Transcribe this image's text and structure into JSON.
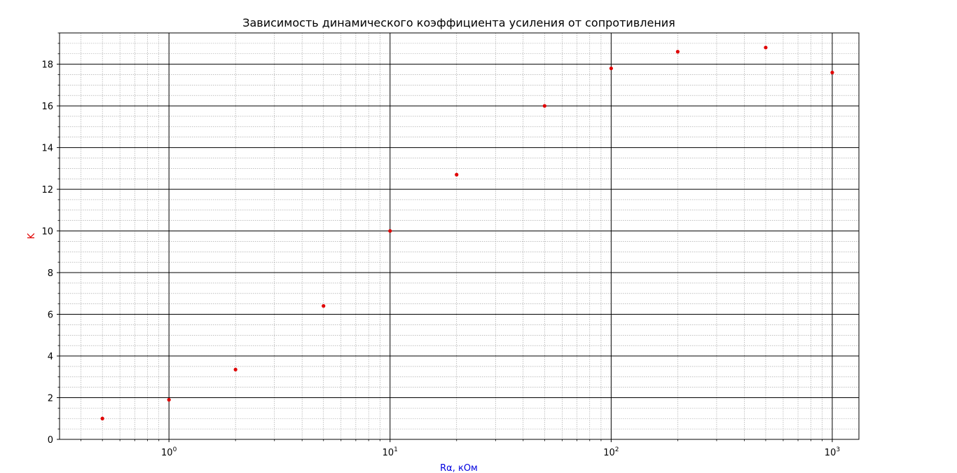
{
  "chart_data": {
    "type": "scatter",
    "title": "Зависимость динамического коэффициента усиления от сопротивления",
    "xlabel": "Rα, кОм",
    "ylabel": "K",
    "xscale": "log",
    "xlim": [
      0.32,
      1320
    ],
    "ylim": [
      0,
      19.5
    ],
    "x_ticks": [
      {
        "value": 1,
        "base": "10",
        "exp": "0"
      },
      {
        "value": 10,
        "base": "10",
        "exp": "1"
      },
      {
        "value": 100,
        "base": "10",
        "exp": "2"
      },
      {
        "value": 1000,
        "base": "10",
        "exp": "3"
      }
    ],
    "y_ticks": [
      0,
      2,
      4,
      6,
      8,
      10,
      12,
      14,
      16,
      18
    ],
    "grid": {
      "major": true,
      "minor": true
    },
    "colors": {
      "marker": "#e00000",
      "xlabel": "#0000e0",
      "ylabel": "#e00000",
      "major_grid": "#000000",
      "minor_grid": "#999999"
    },
    "series": [
      {
        "x": [
          0.5,
          1,
          2,
          5,
          10,
          20,
          50,
          100,
          200,
          500,
          1000
        ],
        "y": [
          1.0,
          1.9,
          3.35,
          6.4,
          10.0,
          12.7,
          16.0,
          17.8,
          18.6,
          18.8,
          17.6
        ]
      }
    ]
  }
}
